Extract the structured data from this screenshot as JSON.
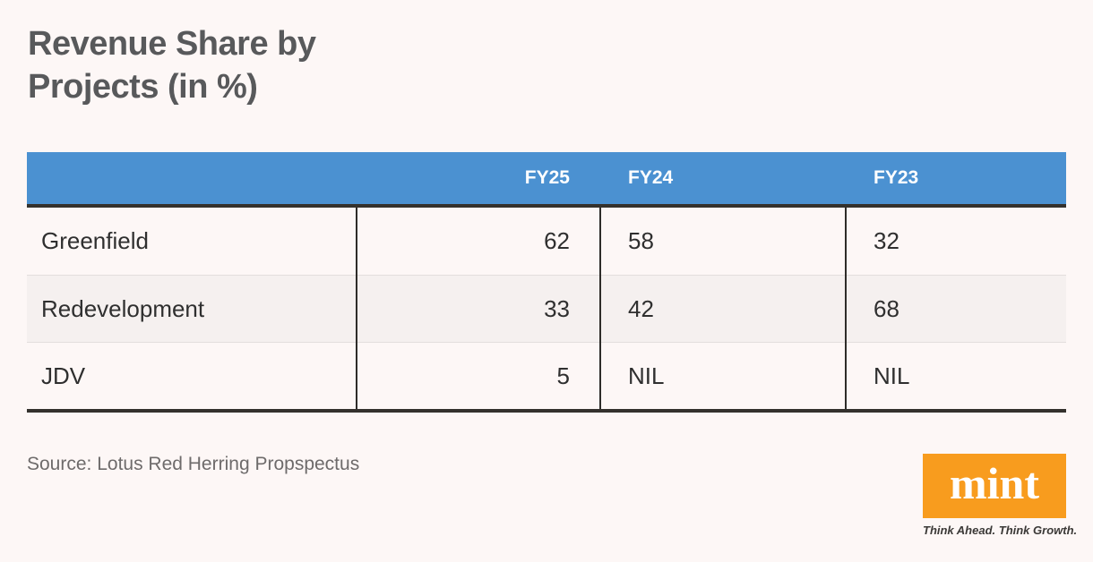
{
  "title": {
    "line1": "Revenue Share by",
    "line2": "Projects (in %)"
  },
  "chart_data": {
    "type": "table",
    "title": "Revenue Share by Projects (in %)",
    "columns": [
      "",
      "FY25",
      "FY24",
      "FY23"
    ],
    "rows": [
      {
        "label": "Greenfield",
        "values": [
          "62",
          "58",
          "32"
        ]
      },
      {
        "label": "Redevelopment",
        "values": [
          "33",
          "42",
          "68"
        ]
      },
      {
        "label": "JDV",
        "values": [
          "5",
          "NIL",
          "NIL"
        ]
      }
    ],
    "layout_hints": {
      "header_bg": "#4b91d1",
      "alt_row_bg": "#f5f0ef",
      "dark_rule": "#34312d",
      "fy25_alignment": "right",
      "fy24_alignment": "left",
      "fy23_alignment": "left"
    }
  },
  "source": "Source: Lotus Red Herring Propspectus",
  "logo": {
    "wordmark": "mint",
    "tagline": "Think Ahead. Think Growth.",
    "orange": "#f89c1e"
  },
  "colors": {
    "page_bg": "#fdf7f6",
    "title_text": "#58595b",
    "header_text": "#ffffff",
    "body_text": "#2f2f2f",
    "source_text": "#6e6b6b"
  }
}
